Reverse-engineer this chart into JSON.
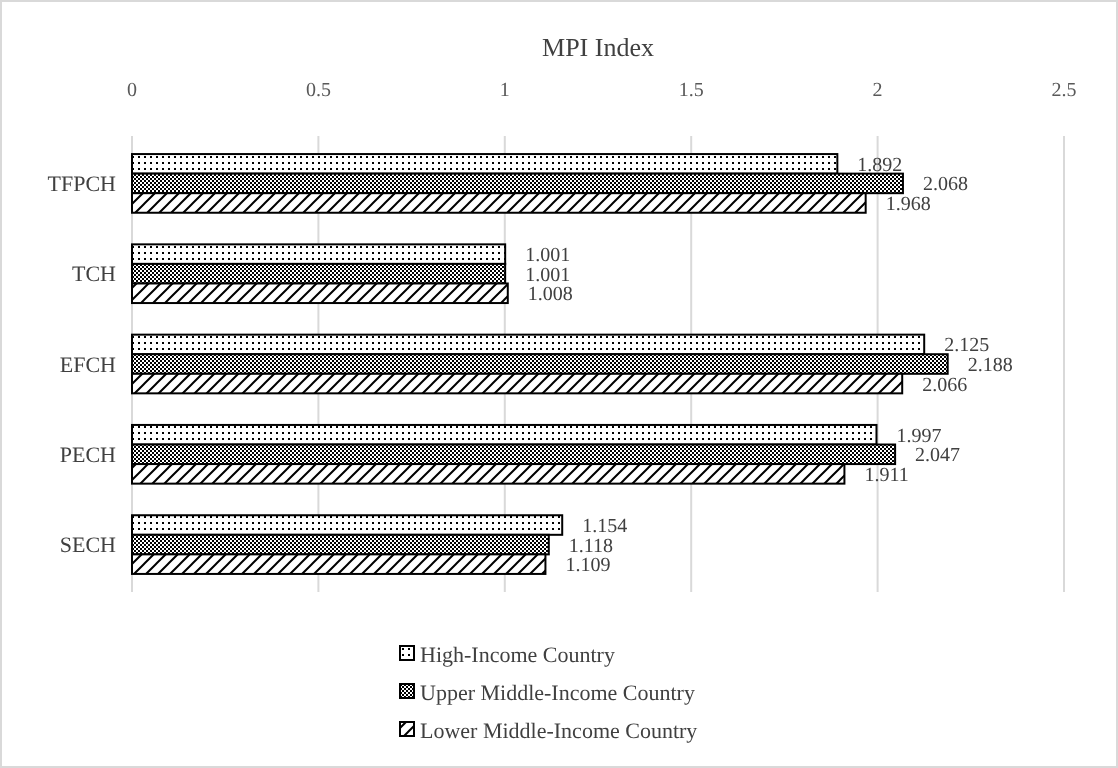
{
  "chart_data": {
    "type": "bar",
    "orientation": "horizontal",
    "title": "MPI Index",
    "categories": [
      "TFPCH",
      "TCH",
      "EFCH",
      "PECH",
      "SECH"
    ],
    "series": [
      {
        "name": "High-Income Country",
        "color": "#000000",
        "values": [
          1.892,
          1.001,
          2.125,
          1.997,
          1.154
        ]
      },
      {
        "name": "Upper Middle-Income Country",
        "color": "#000000",
        "values": [
          2.068,
          1.001,
          2.188,
          2.047,
          1.118
        ]
      },
      {
        "name": "Lower Middle-Income Country",
        "color": "#000000",
        "values": [
          1.968,
          1.008,
          2.066,
          1.911,
          1.109
        ]
      }
    ],
    "xlim": [
      0,
      2.5
    ],
    "xticks": [
      0,
      0.5,
      1,
      1.5,
      2,
      2.5
    ],
    "grid": "x",
    "legend": "bottom",
    "data_labels": true
  }
}
